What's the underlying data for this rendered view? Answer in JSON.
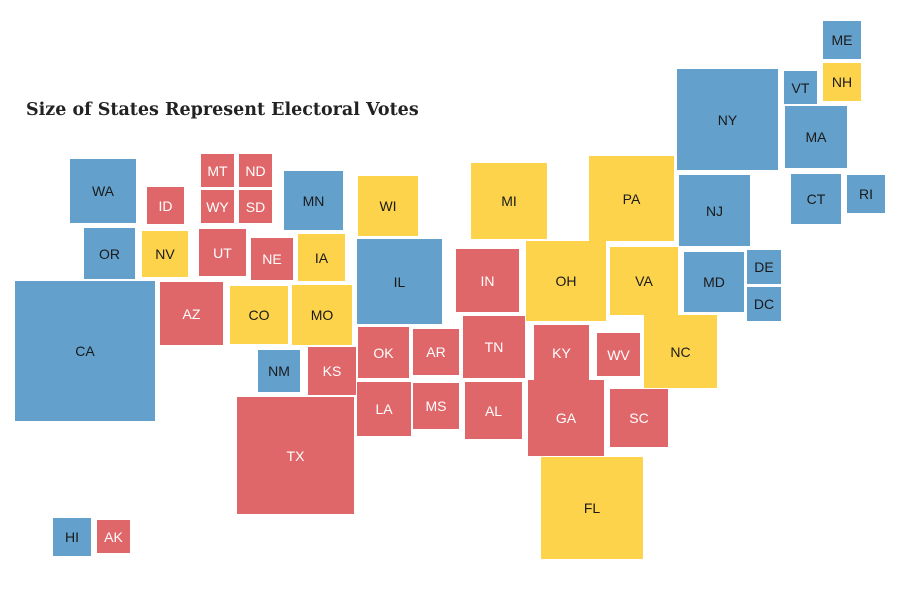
{
  "title": "Size of States Represent Electoral Votes",
  "colors": {
    "dem": "#63a0cc",
    "rep": "#e06769",
    "swing": "#fdd34c"
  },
  "states": [
    {
      "abbr": "ME",
      "party": "dem"
    },
    {
      "abbr": "VT",
      "party": "dem"
    },
    {
      "abbr": "NH",
      "party": "swing"
    },
    {
      "abbr": "NY",
      "party": "dem"
    },
    {
      "abbr": "MA",
      "party": "dem"
    },
    {
      "abbr": "CT",
      "party": "dem"
    },
    {
      "abbr": "RI",
      "party": "dem"
    },
    {
      "abbr": "WA",
      "party": "dem"
    },
    {
      "abbr": "ID",
      "party": "rep"
    },
    {
      "abbr": "MT",
      "party": "rep"
    },
    {
      "abbr": "ND",
      "party": "rep"
    },
    {
      "abbr": "WY",
      "party": "rep"
    },
    {
      "abbr": "SD",
      "party": "rep"
    },
    {
      "abbr": "MN",
      "party": "dem"
    },
    {
      "abbr": "WI",
      "party": "swing"
    },
    {
      "abbr": "MI",
      "party": "swing"
    },
    {
      "abbr": "PA",
      "party": "swing"
    },
    {
      "abbr": "NJ",
      "party": "dem"
    },
    {
      "abbr": "OR",
      "party": "dem"
    },
    {
      "abbr": "NV",
      "party": "swing"
    },
    {
      "abbr": "UT",
      "party": "rep"
    },
    {
      "abbr": "NE",
      "party": "rep"
    },
    {
      "abbr": "IA",
      "party": "swing"
    },
    {
      "abbr": "IL",
      "party": "dem"
    },
    {
      "abbr": "IN",
      "party": "rep"
    },
    {
      "abbr": "OH",
      "party": "swing"
    },
    {
      "abbr": "VA",
      "party": "swing"
    },
    {
      "abbr": "MD",
      "party": "dem"
    },
    {
      "abbr": "DE",
      "party": "dem"
    },
    {
      "abbr": "DC",
      "party": "dem"
    },
    {
      "abbr": "CA",
      "party": "dem"
    },
    {
      "abbr": "AZ",
      "party": "rep"
    },
    {
      "abbr": "CO",
      "party": "swing"
    },
    {
      "abbr": "MO",
      "party": "swing"
    },
    {
      "abbr": "OK",
      "party": "rep"
    },
    {
      "abbr": "AR",
      "party": "rep"
    },
    {
      "abbr": "TN",
      "party": "rep"
    },
    {
      "abbr": "KY",
      "party": "rep"
    },
    {
      "abbr": "WV",
      "party": "rep"
    },
    {
      "abbr": "NC",
      "party": "swing"
    },
    {
      "abbr": "NM",
      "party": "dem"
    },
    {
      "abbr": "KS",
      "party": "rep"
    },
    {
      "abbr": "LA",
      "party": "rep"
    },
    {
      "abbr": "MS",
      "party": "rep"
    },
    {
      "abbr": "AL",
      "party": "rep"
    },
    {
      "abbr": "GA",
      "party": "rep"
    },
    {
      "abbr": "SC",
      "party": "rep"
    },
    {
      "abbr": "TX",
      "party": "rep"
    },
    {
      "abbr": "FL",
      "party": "swing"
    },
    {
      "abbr": "HI",
      "party": "dem"
    },
    {
      "abbr": "AK",
      "party": "rep"
    }
  ]
}
